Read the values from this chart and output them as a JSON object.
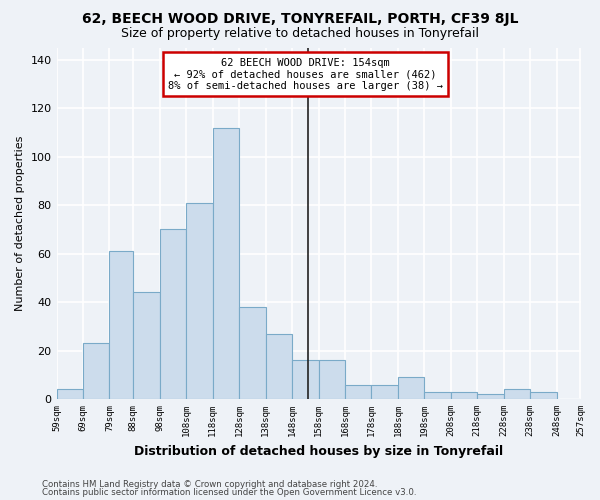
{
  "title": "62, BEECH WOOD DRIVE, TONYREFAIL, PORTH, CF39 8JL",
  "subtitle": "Size of property relative to detached houses in Tonyrefail",
  "xlabel": "Distribution of detached houses by size in Tonyrefail",
  "ylabel": "Number of detached properties",
  "bar_values": [
    4,
    23,
    61,
    44,
    70,
    81,
    112,
    38,
    27,
    16,
    16,
    6,
    6,
    9,
    3,
    3,
    2,
    4,
    3,
    0
  ],
  "bin_edges": [
    59,
    69,
    79,
    88,
    98,
    108,
    118,
    128,
    138,
    148,
    158,
    168,
    178,
    188,
    198,
    208,
    218,
    228,
    238,
    248,
    257
  ],
  "tick_labels": [
    "59sqm",
    "69sqm",
    "79sqm",
    "88sqm",
    "98sqm",
    "108sqm",
    "118sqm",
    "128sqm",
    "138sqm",
    "148sqm",
    "158sqm",
    "168sqm",
    "178sqm",
    "188sqm",
    "198sqm",
    "208sqm",
    "218sqm",
    "228sqm",
    "238sqm",
    "248sqm",
    "257sqm"
  ],
  "bar_color": "#ccdcec",
  "bar_edge_color": "#7aaac8",
  "property_line_x": 154,
  "annotation_line1": "62 BEECH WOOD DRIVE: 154sqm",
  "annotation_line2": "← 92% of detached houses are smaller (462)",
  "annotation_line3": "8% of semi-detached houses are larger (38) →",
  "annotation_box_color": "#ffffff",
  "annotation_box_edge": "#cc0000",
  "ylim": [
    0,
    145
  ],
  "yticks": [
    0,
    20,
    40,
    60,
    80,
    100,
    120,
    140
  ],
  "bg_color": "#eef2f7",
  "grid_color": "#ffffff",
  "footer1": "Contains HM Land Registry data © Crown copyright and database right 2024.",
  "footer2": "Contains public sector information licensed under the Open Government Licence v3.0."
}
